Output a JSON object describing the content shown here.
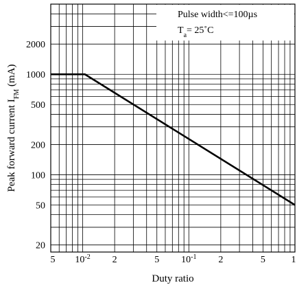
{
  "chart_data": {
    "type": "line",
    "title": "",
    "xlabel": "Duty ratio",
    "ylabel": "Peak forward current I FM (mA)",
    "ylabel_parts": {
      "main": "Peak forward current I",
      "sub": "FM",
      "unit": " (mA)"
    },
    "xscale": "log",
    "yscale": "log",
    "xlim": [
      0.005,
      1
    ],
    "ylim": [
      17,
      5000
    ],
    "grid": true,
    "x_ticks": [
      {
        "value": 0.005,
        "label": "5"
      },
      {
        "value": 0.01,
        "label": "10",
        "exp": "-2"
      },
      {
        "value": 0.02,
        "label": "2"
      },
      {
        "value": 0.05,
        "label": "5"
      },
      {
        "value": 0.1,
        "label": "10",
        "exp": "-1"
      },
      {
        "value": 0.2,
        "label": "2"
      },
      {
        "value": 0.5,
        "label": "5"
      },
      {
        "value": 1,
        "label": "1"
      }
    ],
    "y_ticks": [
      {
        "value": 20,
        "label": "20"
      },
      {
        "value": 50,
        "label": "50"
      },
      {
        "value": 100,
        "label": "100"
      },
      {
        "value": 200,
        "label": "200"
      },
      {
        "value": 500,
        "label": "500"
      },
      {
        "value": 1000,
        "label": "1000"
      },
      {
        "value": 2000,
        "label": "2000"
      }
    ],
    "series": [
      {
        "x": [
          0.005,
          0.0105,
          1
        ],
        "y": [
          1000,
          1000,
          50
        ]
      }
    ],
    "annotation": {
      "line1": "Pulse width<=100µs",
      "line2_main": "T",
      "line2_sub": "a",
      "line2_rest": "= 25˚C"
    }
  }
}
